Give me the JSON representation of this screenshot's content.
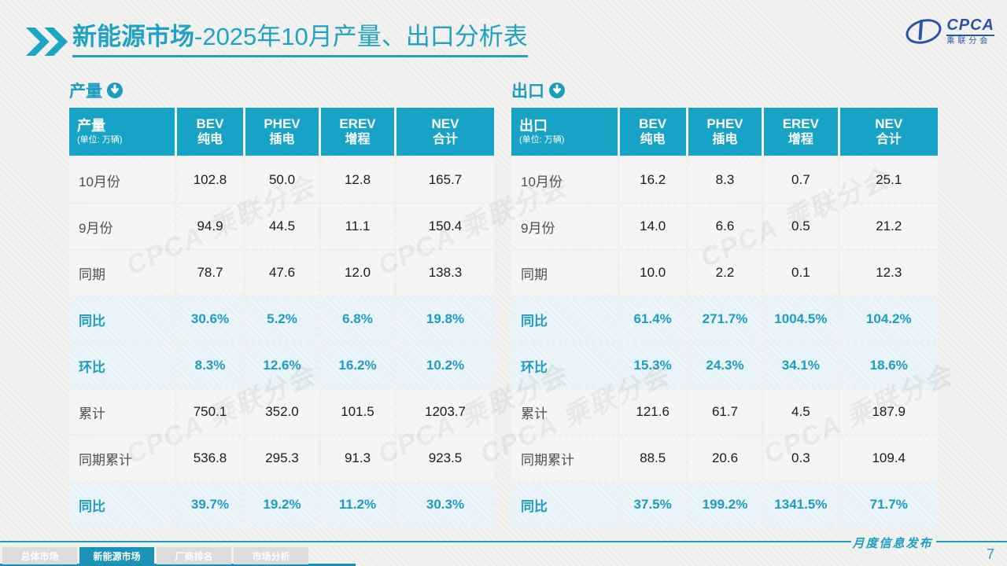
{
  "slide": {
    "title": {
      "bold": "新能源市场",
      "rest": "-2025年10月产量、出口分析表"
    },
    "logo": {
      "brand": "CPCA",
      "subtitle": "乘联分会"
    },
    "watermark": "CPCA 乘联分会"
  },
  "tables": {
    "production": {
      "section_label": "产量",
      "corner": {
        "title": "产量",
        "unit": "(单位: 万辆)"
      },
      "columns": [
        {
          "en": "BEV",
          "cn": "纯电"
        },
        {
          "en": "PHEV",
          "cn": "插电"
        },
        {
          "en": "EREV",
          "cn": "增程"
        },
        {
          "en": "NEV",
          "cn": "合计"
        }
      ],
      "rows": [
        {
          "label": "10月份",
          "type": "data",
          "values": [
            "102.8",
            "50.0",
            "12.8",
            "165.7"
          ]
        },
        {
          "label": "9月份",
          "type": "data",
          "values": [
            "94.9",
            "44.5",
            "11.1",
            "150.4"
          ]
        },
        {
          "label": "同期",
          "type": "data",
          "values": [
            "78.7",
            "47.6",
            "12.0",
            "138.3"
          ]
        },
        {
          "label": "同比",
          "type": "pct",
          "values": [
            "30.6%",
            "5.2%",
            "6.8%",
            "19.8%"
          ]
        },
        {
          "label": "环比",
          "type": "pct",
          "values": [
            "8.3%",
            "12.6%",
            "16.2%",
            "10.2%"
          ]
        },
        {
          "label": "累计",
          "type": "data",
          "values": [
            "750.1",
            "352.0",
            "101.5",
            "1203.7"
          ]
        },
        {
          "label": "同期累计",
          "type": "data",
          "values": [
            "536.8",
            "295.3",
            "91.3",
            "923.5"
          ]
        },
        {
          "label": "同比",
          "type": "pct",
          "values": [
            "39.7%",
            "19.2%",
            "11.2%",
            "30.3%"
          ]
        }
      ]
    },
    "export": {
      "section_label": "出口",
      "corner": {
        "title": "出口",
        "unit": "(单位: 万辆)"
      },
      "columns": [
        {
          "en": "BEV",
          "cn": "纯电"
        },
        {
          "en": "PHEV",
          "cn": "插电"
        },
        {
          "en": "EREV",
          "cn": "增程"
        },
        {
          "en": "NEV",
          "cn": "合计"
        }
      ],
      "rows": [
        {
          "label": "10月份",
          "type": "data",
          "values": [
            "16.2",
            "8.3",
            "0.7",
            "25.1"
          ]
        },
        {
          "label": "9月份",
          "type": "data",
          "values": [
            "14.0",
            "6.6",
            "0.5",
            "21.2"
          ]
        },
        {
          "label": "同期",
          "type": "data",
          "values": [
            "10.0",
            "2.2",
            "0.1",
            "12.3"
          ]
        },
        {
          "label": "同比",
          "type": "pct",
          "values": [
            "61.4%",
            "271.7%",
            "1004.5%",
            "104.2%"
          ]
        },
        {
          "label": "环比",
          "type": "pct",
          "values": [
            "15.3%",
            "24.3%",
            "34.1%",
            "18.6%"
          ]
        },
        {
          "label": "累计",
          "type": "data",
          "values": [
            "121.6",
            "61.7",
            "4.5",
            "187.9"
          ]
        },
        {
          "label": "同期累计",
          "type": "data",
          "values": [
            "88.5",
            "20.6",
            "0.3",
            "109.4"
          ]
        },
        {
          "label": "同比",
          "type": "pct",
          "values": [
            "37.5%",
            "199.2%",
            "1341.5%",
            "71.7%"
          ]
        }
      ]
    }
  },
  "footer": {
    "release_label": "月度信息发布",
    "page_number": "7",
    "tabs": [
      {
        "label": "总体市场",
        "active": false
      },
      {
        "label": "新能源市场",
        "active": true
      },
      {
        "label": "厂商排名",
        "active": false
      },
      {
        "label": "市场分析",
        "active": false
      }
    ]
  },
  "colors": {
    "accent": "#17a3c5",
    "accent_dark": "#1b93b6",
    "title": "#21a2c3",
    "pct_row_bg": "#e7f2f8",
    "pct_text": "#1e9cc2",
    "logo_blue": "#2a55a4"
  }
}
